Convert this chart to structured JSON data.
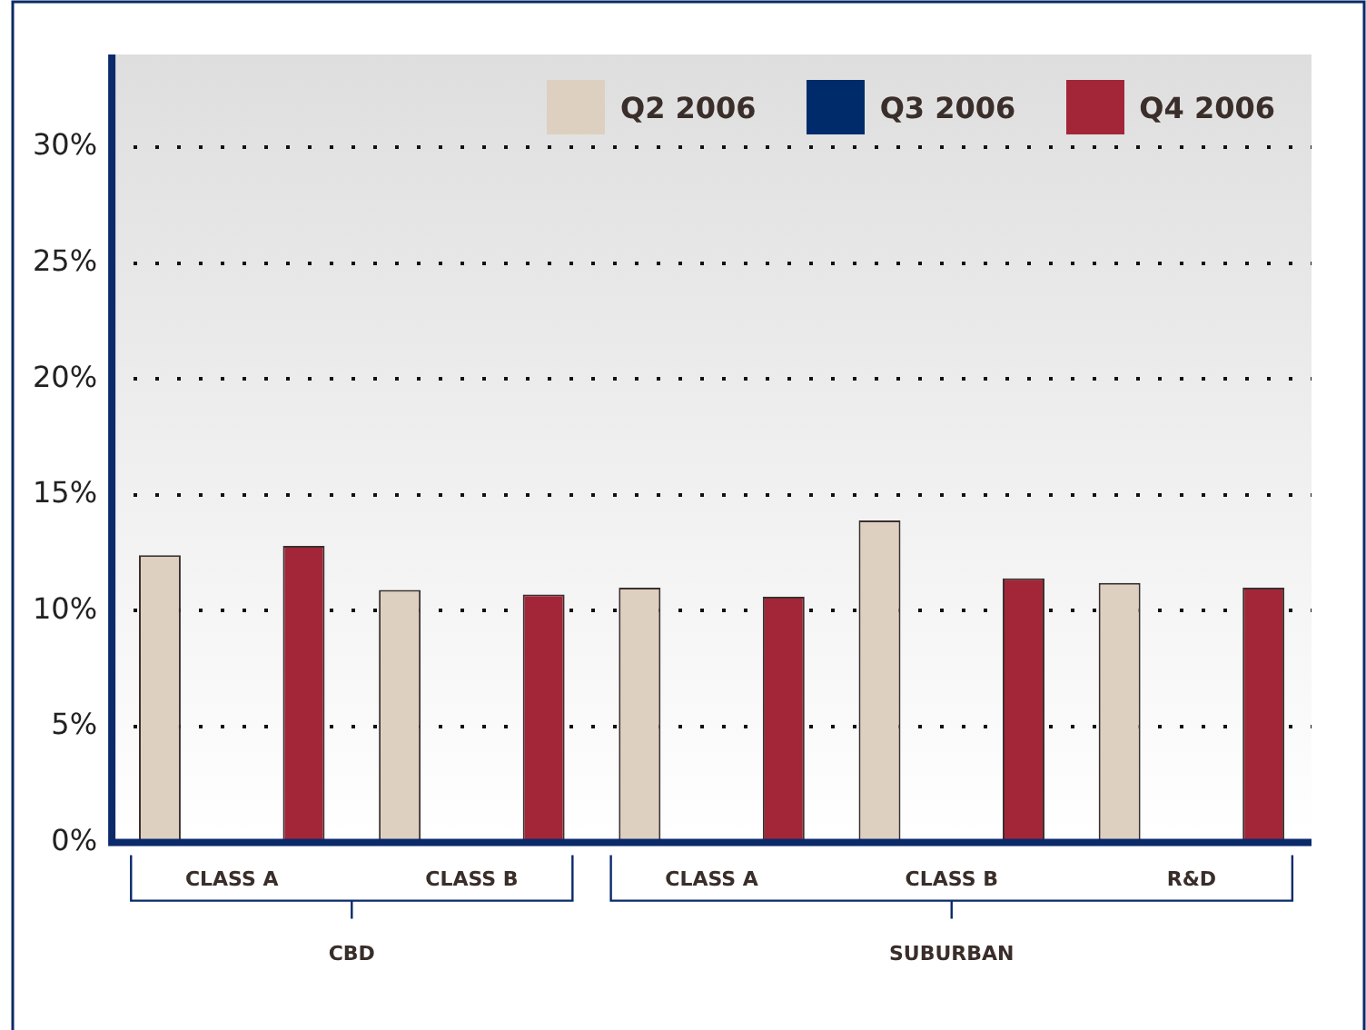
{
  "chart_data": {
    "type": "bar",
    "categories": [
      "CLASS A",
      "CLASS B",
      "CLASS A",
      "CLASS B",
      "R&D"
    ],
    "series": [
      {
        "name": "Q2 2006",
        "color": "#ddd0c0",
        "values": [
          12.4,
          10.9,
          11.0,
          13.9,
          11.2
        ]
      },
      {
        "name": "Q3 2006",
        "color": "#002b6b",
        "values": [
          null,
          null,
          null,
          null,
          null
        ]
      },
      {
        "name": "Q4 2006",
        "color": "#a32638",
        "values": [
          12.8,
          10.7,
          10.6,
          11.4,
          11.0
        ]
      }
    ],
    "ylim": [
      0,
      34
    ],
    "yticks": [
      {
        "value": 0,
        "label": "0%"
      },
      {
        "value": 5,
        "label": "5%"
      },
      {
        "value": 10,
        "label": "10%"
      },
      {
        "value": 15,
        "label": "15%"
      },
      {
        "value": 20,
        "label": "20%"
      },
      {
        "value": 25,
        "label": "25%"
      },
      {
        "value": 30,
        "label": "30%"
      }
    ],
    "grid": "y",
    "legend": "top right",
    "annotations": [
      "CBD",
      "SUBURBAN"
    ]
  }
}
